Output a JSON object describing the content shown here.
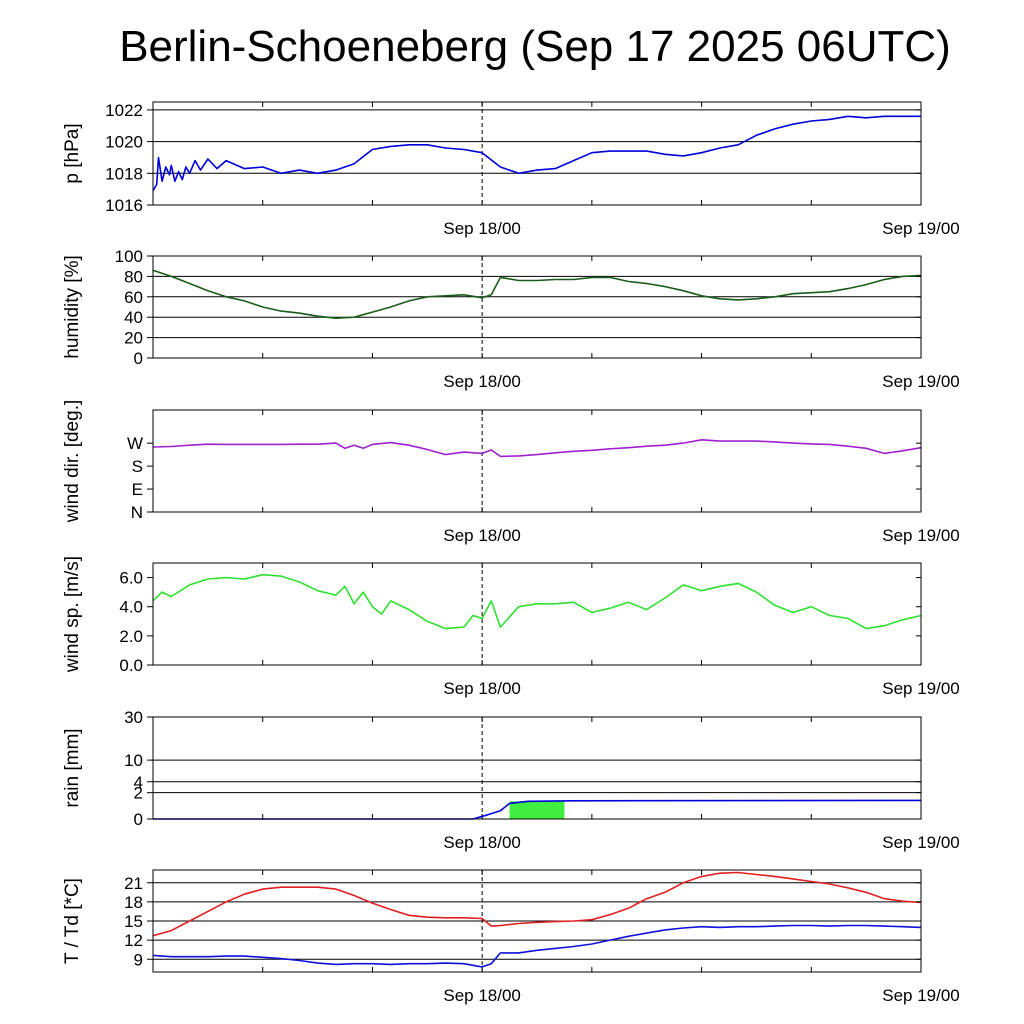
{
  "title": "Berlin-Schoeneberg (Sep 17 2025 06UTC)",
  "chart_data": [
    {
      "type": "line",
      "ylabel": "p [hPa]",
      "x_ticks": [
        "Sep 18/00",
        "Sep 19/00"
      ],
      "x_range_hours": [
        0,
        42
      ],
      "ylim": [
        1016,
        1022.5
      ],
      "yticks": [
        1016,
        1018,
        1020,
        1022
      ],
      "grid_lines": [
        1018,
        1020,
        1022
      ],
      "series": [
        {
          "color": "#0000dd",
          "x": [
            0,
            0.2,
            0.3,
            0.5,
            0.7,
            0.9,
            1.0,
            1.2,
            1.4,
            1.6,
            1.8,
            2.0,
            2.3,
            2.6,
            3,
            3.5,
            4,
            5,
            6,
            7,
            8,
            9,
            10,
            11,
            12,
            13,
            14,
            15,
            16,
            17,
            18,
            19,
            20,
            21,
            22,
            23,
            24,
            25,
            26,
            27,
            28,
            29,
            30,
            31,
            32,
            33,
            34,
            35,
            36,
            37,
            38,
            39,
            40,
            41,
            42
          ],
          "y": [
            1016.9,
            1017.3,
            1019.0,
            1017.5,
            1018.4,
            1017.9,
            1018.5,
            1017.5,
            1018.1,
            1017.6,
            1018.4,
            1018.0,
            1018.8,
            1018.2,
            1018.9,
            1018.3,
            1018.8,
            1018.3,
            1018.4,
            1018.0,
            1018.2,
            1018.0,
            1018.2,
            1018.6,
            1019.5,
            1019.7,
            1019.8,
            1019.8,
            1019.6,
            1019.5,
            1019.3,
            1018.4,
            1018.0,
            1018.2,
            1018.3,
            1018.8,
            1019.3,
            1019.4,
            1019.4,
            1019.4,
            1019.2,
            1019.1,
            1019.3,
            1019.6,
            1019.8,
            1020.4,
            1020.8,
            1021.1,
            1021.3,
            1021.4,
            1021.6,
            1021.5,
            1021.6,
            1021.6,
            1021.6
          ]
        }
      ]
    },
    {
      "type": "line",
      "ylabel": "humidity [%]",
      "x_ticks": [
        "Sep 18/00",
        "Sep 19/00"
      ],
      "x_range_hours": [
        0,
        42
      ],
      "ylim": [
        0,
        100
      ],
      "yticks": [
        0,
        20,
        40,
        60,
        80,
        100
      ],
      "grid_lines": [
        20,
        40,
        60,
        80
      ],
      "series": [
        {
          "color": "#1a5c1a",
          "x": [
            0,
            1,
            2,
            3,
            4,
            5,
            6,
            7,
            8,
            9,
            10,
            11,
            12,
            13,
            14,
            15,
            16,
            17,
            18,
            18.5,
            19,
            20,
            21,
            22,
            23,
            24,
            25,
            26,
            27,
            28,
            29,
            30,
            31,
            32,
            33,
            34,
            35,
            36,
            37,
            38,
            39,
            40,
            41,
            42
          ],
          "y": [
            86,
            80,
            73,
            66,
            60,
            56,
            50,
            46,
            44,
            41,
            39,
            40,
            45,
            50,
            56,
            60,
            61,
            62,
            59,
            62,
            79,
            76,
            76,
            77,
            77,
            79,
            79,
            75,
            73,
            70,
            66,
            61,
            58,
            57,
            58,
            60,
            63,
            64,
            65,
            68,
            72,
            77,
            80,
            81
          ]
        }
      ]
    },
    {
      "type": "line",
      "ylabel": "wind dir. [deg.]",
      "x_ticks": [
        "Sep 18/00",
        "Sep 19/00"
      ],
      "x_range_hours": [
        0,
        42
      ],
      "ylim": [
        0,
        400
      ],
      "yticks": [
        0,
        90,
        180,
        270
      ],
      "ytick_labels": [
        "N",
        "E",
        "S",
        "W"
      ],
      "series": [
        {
          "color": "#a020d0",
          "x": [
            0,
            1,
            2,
            3,
            4,
            5,
            6,
            7,
            8,
            9,
            10,
            10.5,
            11,
            11.5,
            12,
            13,
            14,
            15,
            16,
            17,
            18,
            18.5,
            19,
            20,
            21,
            22,
            23,
            24,
            25,
            26,
            27,
            28,
            29,
            30,
            31,
            32,
            33,
            34,
            35,
            36,
            37,
            38,
            39,
            40,
            41,
            42
          ],
          "y": [
            255,
            257,
            262,
            266,
            265,
            265,
            265,
            265,
            266,
            266,
            270,
            250,
            262,
            250,
            265,
            272,
            262,
            245,
            225,
            235,
            230,
            243,
            218,
            220,
            225,
            232,
            238,
            242,
            248,
            252,
            258,
            262,
            270,
            283,
            278,
            278,
            278,
            275,
            270,
            267,
            265,
            258,
            250,
            230,
            240,
            252
          ]
        }
      ]
    },
    {
      "type": "line",
      "ylabel": "wind sp. [m/s]",
      "x_ticks": [
        "Sep 18/00",
        "Sep 19/00"
      ],
      "x_range_hours": [
        0,
        42
      ],
      "ylim": [
        0,
        7
      ],
      "yticks": [
        0.0,
        2.0,
        4.0,
        6.0
      ],
      "ytick_labels": [
        "0.0",
        "2.0",
        "4.0",
        "6.0"
      ],
      "series": [
        {
          "color": "#30e030",
          "x": [
            0,
            0.5,
            1,
            2,
            3,
            4,
            5,
            6,
            7,
            8,
            9,
            10,
            10.5,
            11,
            11.5,
            12,
            12.5,
            13,
            14,
            15,
            16,
            17,
            17.5,
            18,
            18.5,
            19,
            20,
            21,
            22,
            23,
            24,
            25,
            26,
            27,
            28,
            29,
            30,
            31,
            32,
            33,
            34,
            35,
            36,
            37,
            38,
            39,
            40,
            41,
            42
          ],
          "y": [
            4.4,
            5.0,
            4.7,
            5.5,
            5.9,
            6.0,
            5.9,
            6.2,
            6.1,
            5.7,
            5.1,
            4.8,
            5.4,
            4.2,
            5.0,
            4.0,
            3.5,
            4.4,
            3.8,
            3.0,
            2.5,
            2.6,
            3.4,
            3.2,
            4.4,
            2.6,
            4.0,
            4.2,
            4.2,
            4.3,
            3.6,
            3.9,
            4.3,
            3.8,
            4.6,
            5.5,
            5.1,
            5.4,
            5.6,
            5.0,
            4.1,
            3.6,
            4.0,
            3.4,
            3.2,
            2.5,
            2.7,
            3.1,
            3.4
          ]
        }
      ]
    },
    {
      "type": "line",
      "ylabel": "rain [mm]",
      "x_ticks": [
        "Sep 18/00",
        "Sep 19/00"
      ],
      "x_range_hours": [
        0,
        42
      ],
      "ylim": [
        0,
        30
      ],
      "yticks": [
        0,
        2,
        4,
        10,
        30
      ],
      "scale": "sqrt",
      "grid_lines": [
        2,
        4,
        10,
        30
      ],
      "bars": [
        {
          "x_start": 19.5,
          "x_end": 22.5,
          "value": 0.9,
          "color": "#40ee40"
        }
      ],
      "series": [
        {
          "color": "#0000dd",
          "x": [
            0,
            17.5,
            18.3,
            19,
            19.5,
            20.5,
            23,
            42
          ],
          "y": [
            0,
            0,
            0.05,
            0.2,
            0.7,
            0.9,
            0.95,
            1.0
          ]
        }
      ]
    },
    {
      "type": "line",
      "ylabel": "T / Td [*C]",
      "x_ticks": [
        "Sep 18/00",
        "Sep 19/00"
      ],
      "x_range_hours": [
        0,
        42
      ],
      "ylim": [
        7,
        23
      ],
      "yticks": [
        9,
        12,
        15,
        18,
        21
      ],
      "grid_lines": [
        9,
        12,
        15,
        18,
        21
      ],
      "series": [
        {
          "name": "T",
          "color": "#e02020",
          "x": [
            0,
            1,
            2,
            3,
            4,
            5,
            6,
            7,
            8,
            9,
            10,
            11,
            12,
            13,
            14,
            15,
            16,
            17,
            18,
            18.5,
            19,
            20,
            21,
            22,
            23,
            24,
            25,
            26,
            27,
            28,
            29,
            30,
            31,
            32,
            33,
            34,
            35,
            36,
            37,
            38,
            39,
            40,
            41,
            42
          ],
          "y": [
            12.7,
            13.5,
            15.0,
            16.5,
            18.0,
            19.2,
            20.0,
            20.3,
            20.3,
            20.3,
            20.0,
            19.0,
            17.8,
            16.8,
            15.9,
            15.6,
            15.5,
            15.5,
            15.4,
            14.2,
            14.3,
            14.6,
            14.8,
            14.9,
            15.0,
            15.2,
            16.0,
            17.0,
            18.5,
            19.5,
            21.0,
            22.0,
            22.5,
            22.6,
            22.3,
            22.0,
            21.6,
            21.2,
            20.8,
            20.2,
            19.5,
            18.5,
            18.1,
            17.9
          ]
        },
        {
          "name": "Td",
          "color": "#1010dd",
          "x": [
            0,
            1,
            2,
            3,
            4,
            5,
            6,
            7,
            8,
            9,
            10,
            11,
            12,
            13,
            14,
            15,
            16,
            17,
            18,
            18.5,
            19,
            20,
            21,
            22,
            23,
            24,
            25,
            26,
            27,
            28,
            29,
            30,
            31,
            32,
            33,
            34,
            35,
            36,
            37,
            38,
            39,
            40,
            41,
            42
          ],
          "y": [
            9.6,
            9.4,
            9.4,
            9.4,
            9.5,
            9.5,
            9.3,
            9.1,
            8.8,
            8.4,
            8.2,
            8.3,
            8.3,
            8.2,
            8.3,
            8.3,
            8.4,
            8.3,
            7.8,
            8.3,
            10.0,
            10.0,
            10.4,
            10.7,
            11.0,
            11.4,
            12.0,
            12.6,
            13.1,
            13.6,
            13.9,
            14.1,
            14.0,
            14.1,
            14.1,
            14.2,
            14.3,
            14.3,
            14.2,
            14.3,
            14.3,
            14.2,
            14.1,
            14.0
          ]
        }
      ]
    }
  ]
}
